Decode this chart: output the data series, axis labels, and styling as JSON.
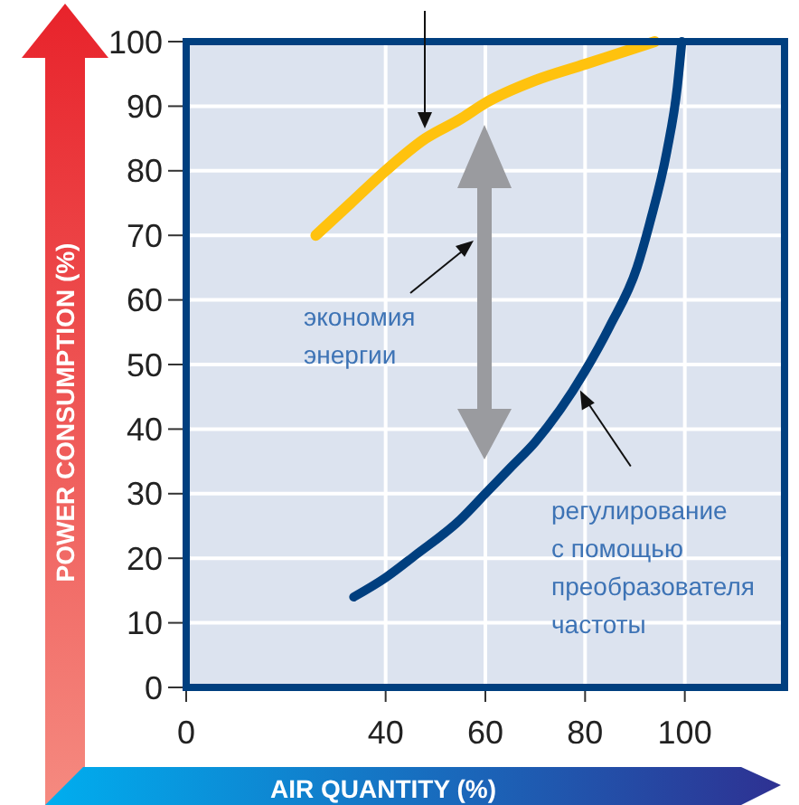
{
  "chart_data": {
    "type": "line",
    "xlabel": "AIR QUANTITY (%)",
    "ylabel": "POWER CONSUMPTION (%)",
    "xlim": [
      0,
      120
    ],
    "xticks": [
      0,
      40,
      60,
      80,
      100
    ],
    "ylim": [
      0,
      100
    ],
    "yticks": [
      0,
      10,
      20,
      30,
      40,
      50,
      60,
      70,
      80,
      90,
      100
    ],
    "grid": true,
    "series": [
      {
        "color": "#ffc20e",
        "x": [
          26,
          33,
          40,
          48,
          55,
          60,
          70,
          80,
          88,
          94
        ],
        "values": [
          70,
          75,
          80,
          85,
          88,
          90.5,
          94,
          96.5,
          98.5,
          100
        ]
      },
      {
        "color": "#003f7f",
        "x": [
          33.6,
          40,
          46,
          55,
          60,
          65,
          70,
          75,
          80,
          85,
          90.4,
          93,
          96.4,
          98.5,
          99.4
        ],
        "values": [
          14,
          17,
          20.5,
          26,
          30,
          34,
          38,
          43,
          49,
          56,
          65,
          72,
          83,
          93,
          100
        ]
      }
    ],
    "annotations": [
      "экономия энергии",
      {
        "text": "регулирование с помощью преобразователя частоты",
        "x": 79,
        "y": 46
      }
    ]
  }
}
